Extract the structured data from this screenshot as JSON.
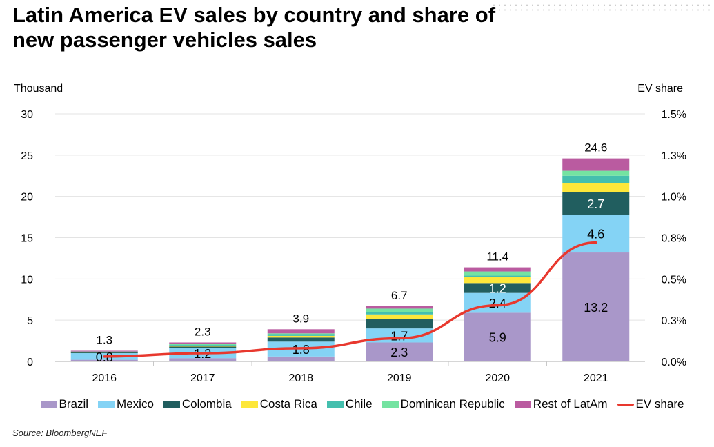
{
  "title": "Latin America EV sales by country and share of new passenger vehicles sales",
  "source": "Source: BloombergNEF",
  "chart_data": {
    "type": "bar",
    "stacked": true,
    "title": "Latin America EV sales by country and share of new passenger vehicles sales",
    "ylabel": "Thousand",
    "y2label": "EV share",
    "categories": [
      "2016",
      "2017",
      "2018",
      "2019",
      "2020",
      "2021"
    ],
    "ylim": [
      0,
      30
    ],
    "yticks": [
      "0",
      "5",
      "10",
      "15",
      "20",
      "25",
      "30"
    ],
    "y2lim": [
      0,
      1.5
    ],
    "y2ticks": [
      "0.0%",
      "0.3%",
      "0.5%",
      "0.8%",
      "1.0%",
      "1.3%",
      "1.5%"
    ],
    "grid": true,
    "legend_position": "bottom",
    "series": [
      {
        "name": "Brazil",
        "color": "#a997c9",
        "values": [
          0.2,
          0.4,
          0.6,
          2.3,
          5.9,
          13.2
        ],
        "labels": [
          null,
          null,
          null,
          "2.3",
          "5.9",
          "13.2"
        ],
        "label_color": "#000"
      },
      {
        "name": "Mexico",
        "color": "#84d3f5",
        "values": [
          0.8,
          1.2,
          1.8,
          1.7,
          2.4,
          4.6
        ],
        "labels": [
          "0.8",
          "1.2",
          "1.8",
          "1.7",
          "2.4",
          "4.6"
        ],
        "label_color": "#000"
      },
      {
        "name": "Colombia",
        "color": "#215e5f",
        "values": [
          0.1,
          0.2,
          0.5,
          1.1,
          1.2,
          2.7
        ],
        "labels": [
          null,
          null,
          null,
          null,
          "1.2",
          "2.7"
        ],
        "label_color": "#fff"
      },
      {
        "name": "Costa Rica",
        "color": "#fde73a",
        "values": [
          0.02,
          0.1,
          0.2,
          0.6,
          0.7,
          1.1
        ],
        "labels": [
          null,
          null,
          null,
          null,
          null,
          null
        ],
        "label_color": "#000"
      },
      {
        "name": "Chile",
        "color": "#44bfae",
        "values": [
          0.05,
          0.1,
          0.2,
          0.3,
          0.2,
          0.9
        ],
        "labels": [
          null,
          null,
          null,
          null,
          null,
          null
        ],
        "label_color": "#000"
      },
      {
        "name": "Dominican Republic",
        "color": "#74e3a1",
        "values": [
          0.03,
          0.1,
          0.1,
          0.4,
          0.5,
          0.6
        ],
        "labels": [
          null,
          null,
          null,
          null,
          null,
          null
        ],
        "label_color": "#000"
      },
      {
        "name": "Rest of LatAm",
        "color": "#ba5ba0",
        "values": [
          0.1,
          0.2,
          0.5,
          0.3,
          0.5,
          1.5
        ],
        "labels": [
          null,
          null,
          null,
          null,
          null,
          null
        ],
        "label_color": "#000"
      }
    ],
    "totals": [
      "1.3",
      "2.3",
      "3.9",
      "6.7",
      "11.4",
      "24.6"
    ],
    "line": {
      "name": "EV share",
      "color": "#e8382e",
      "axis": "right",
      "values": [
        0.03,
        0.05,
        0.08,
        0.14,
        0.34,
        0.72
      ]
    }
  }
}
